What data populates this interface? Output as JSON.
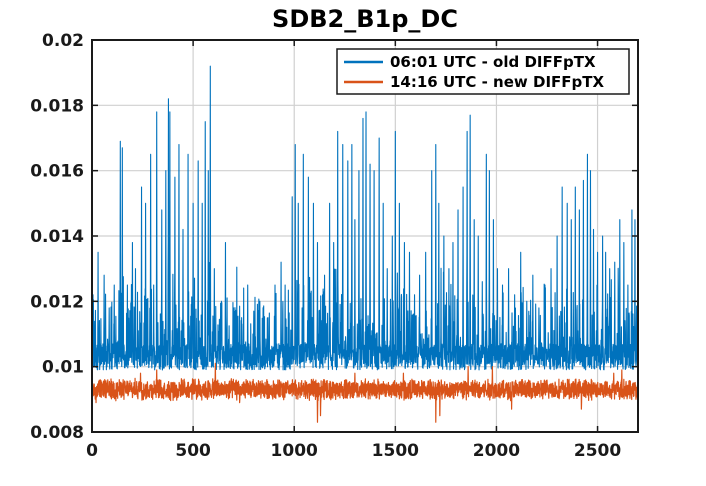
{
  "chart_data": {
    "type": "line",
    "title": "SDB2_B1p_DC",
    "xlabel": "",
    "ylabel": "",
    "xlim": [
      0,
      2700
    ],
    "ylim": [
      0.008,
      0.02
    ],
    "xticks": [
      0,
      500,
      1000,
      1500,
      2000,
      2500
    ],
    "xtick_labels": [
      "0",
      "500",
      "1000",
      "1500",
      "2000",
      "2500"
    ],
    "yticks": [
      0.008,
      0.01,
      0.012,
      0.014,
      0.016,
      0.018,
      0.02
    ],
    "ytick_labels": [
      "0.008",
      "0.01",
      "0.012",
      "0.014",
      "0.016",
      "0.018",
      "0.02"
    ],
    "grid": true,
    "legend_position": "top-right",
    "series": [
      {
        "name": "06:01 UTC - old DIFFpTX",
        "color": "#0072BD",
        "baseline": 0.0103,
        "noise": 0.0004,
        "peaks": [
          [
            5,
            0.0122
          ],
          [
            30,
            0.0135
          ],
          [
            60,
            0.0128
          ],
          [
            85,
            0.0118
          ],
          [
            110,
            0.0125
          ],
          [
            140,
            0.0169
          ],
          [
            150,
            0.0167
          ],
          [
            175,
            0.0125
          ],
          [
            200,
            0.0138
          ],
          [
            215,
            0.013
          ],
          [
            245,
            0.0155
          ],
          [
            265,
            0.015
          ],
          [
            290,
            0.0165
          ],
          [
            305,
            0.0125
          ],
          [
            320,
            0.0178
          ],
          [
            345,
            0.0148
          ],
          [
            365,
            0.016
          ],
          [
            378,
            0.0182
          ],
          [
            385,
            0.0178
          ],
          [
            410,
            0.0158
          ],
          [
            430,
            0.0168
          ],
          [
            450,
            0.0142
          ],
          [
            475,
            0.0165
          ],
          [
            500,
            0.015
          ],
          [
            525,
            0.0163
          ],
          [
            545,
            0.015
          ],
          [
            560,
            0.0175
          ],
          [
            575,
            0.016
          ],
          [
            585,
            0.0192
          ],
          [
            605,
            0.013
          ],
          [
            640,
            0.012
          ],
          [
            660,
            0.0138
          ],
          [
            700,
            0.0118
          ],
          [
            740,
            0.0115
          ],
          [
            770,
            0.0125
          ],
          [
            800,
            0.0117
          ],
          [
            830,
            0.012
          ],
          [
            870,
            0.0115
          ],
          [
            905,
            0.0125
          ],
          [
            935,
            0.0132
          ],
          [
            955,
            0.0125
          ],
          [
            990,
            0.0152
          ],
          [
            1005,
            0.0168
          ],
          [
            1020,
            0.015
          ],
          [
            1045,
            0.0165
          ],
          [
            1070,
            0.0158
          ],
          [
            1095,
            0.015
          ],
          [
            1115,
            0.0138
          ],
          [
            1150,
            0.0128
          ],
          [
            1175,
            0.015
          ],
          [
            1195,
            0.0138
          ],
          [
            1215,
            0.0172
          ],
          [
            1240,
            0.0168
          ],
          [
            1265,
            0.0163
          ],
          [
            1285,
            0.0168
          ],
          [
            1300,
            0.0145
          ],
          [
            1320,
            0.016
          ],
          [
            1340,
            0.0176
          ],
          [
            1355,
            0.0178
          ],
          [
            1375,
            0.0162
          ],
          [
            1395,
            0.016
          ],
          [
            1420,
            0.017
          ],
          [
            1440,
            0.015
          ],
          [
            1460,
            0.013
          ],
          [
            1485,
            0.014
          ],
          [
            1500,
            0.0172
          ],
          [
            1520,
            0.015
          ],
          [
            1545,
            0.0138
          ],
          [
            1570,
            0.0135
          ],
          [
            1595,
            0.0122
          ],
          [
            1620,
            0.0128
          ],
          [
            1650,
            0.0135
          ],
          [
            1680,
            0.016
          ],
          [
            1700,
            0.0168
          ],
          [
            1715,
            0.015
          ],
          [
            1740,
            0.014
          ],
          [
            1765,
            0.013
          ],
          [
            1785,
            0.0138
          ],
          [
            1810,
            0.0148
          ],
          [
            1835,
            0.0155
          ],
          [
            1855,
            0.0172
          ],
          [
            1870,
            0.0177
          ],
          [
            1890,
            0.0145
          ],
          [
            1910,
            0.014
          ],
          [
            1930,
            0.0126
          ],
          [
            1950,
            0.0165
          ],
          [
            1965,
            0.016
          ],
          [
            1985,
            0.0145
          ],
          [
            2005,
            0.013
          ],
          [
            2030,
            0.0125
          ],
          [
            2060,
            0.013
          ],
          [
            2090,
            0.0122
          ],
          [
            2120,
            0.0135
          ],
          [
            2150,
            0.012
          ],
          [
            2180,
            0.0128
          ],
          [
            2210,
            0.0118
          ],
          [
            2240,
            0.0125
          ],
          [
            2270,
            0.013
          ],
          [
            2300,
            0.014
          ],
          [
            2325,
            0.0155
          ],
          [
            2350,
            0.015
          ],
          [
            2370,
            0.0145
          ],
          [
            2390,
            0.0155
          ],
          [
            2410,
            0.0148
          ],
          [
            2430,
            0.0157
          ],
          [
            2450,
            0.0165
          ],
          [
            2465,
            0.016
          ],
          [
            2480,
            0.0142
          ],
          [
            2500,
            0.0135
          ],
          [
            2525,
            0.014
          ],
          [
            2540,
            0.0135
          ],
          [
            2560,
            0.013
          ],
          [
            2585,
            0.0132
          ],
          [
            2610,
            0.0145
          ],
          [
            2630,
            0.0138
          ],
          [
            2650,
            0.0125
          ],
          [
            2670,
            0.0148
          ],
          [
            2685,
            0.0145
          ]
        ]
      },
      {
        "name": "14:16 UTC - new DIFFpTX",
        "color": "#D95319",
        "baseline": 0.0093,
        "noise": 0.00025,
        "peaks": [
          [
            240,
            0.0098
          ],
          [
            320,
            0.0099
          ],
          [
            610,
            0.0101
          ],
          [
            1300,
            0.0098
          ],
          [
            1540,
            0.0098
          ],
          [
            1860,
            0.01
          ],
          [
            1980,
            0.01
          ],
          [
            2580,
            0.0098
          ],
          [
            2620,
            0.0099
          ]
        ],
        "dips": [
          [
            0,
            0.0087
          ],
          [
            20,
            0.0089
          ],
          [
            730,
            0.0089
          ],
          [
            1115,
            0.0083
          ],
          [
            1130,
            0.0085
          ],
          [
            1700,
            0.0083
          ],
          [
            1720,
            0.0085
          ],
          [
            2075,
            0.0087
          ],
          [
            2420,
            0.0087
          ],
          [
            2690,
            0.009
          ]
        ]
      }
    ]
  }
}
